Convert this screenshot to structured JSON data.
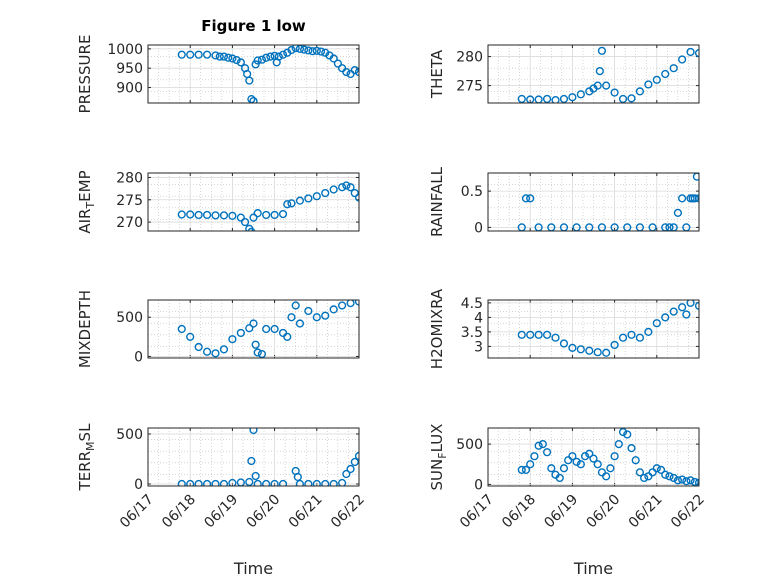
{
  "figure": {
    "colors": {
      "marker": "#0072BD",
      "axis": "#262626",
      "grid": "#bdbdbd"
    },
    "x_tick_labels": [
      "06/17",
      "06/18",
      "06/19",
      "06/20",
      "06/21",
      "06/22"
    ],
    "xlabel": "Time"
  },
  "chart_data": [
    {
      "type": "scatter",
      "title": "Figure 1 low",
      "ylabel": "PRESSURE",
      "ylabel_sub": "",
      "ylim": [
        860,
        1010
      ],
      "yticks": [
        900,
        950,
        1000
      ],
      "ytick_labels": [
        "900",
        "950",
        "1000"
      ],
      "xlim": [
        0,
        5
      ],
      "grid": true,
      "series": [
        {
          "x": [
            0.8,
            1.0,
            1.2,
            1.4,
            1.6,
            1.7,
            1.8,
            1.9,
            2.0,
            2.1,
            2.2,
            2.3,
            2.35,
            2.4,
            2.45,
            2.5,
            2.55,
            2.6,
            2.7,
            2.8,
            2.9,
            3.0,
            3.05,
            3.1,
            3.2,
            3.3,
            3.4,
            3.5,
            3.6,
            3.7,
            3.8,
            3.9,
            4.0,
            4.1,
            4.2,
            4.3,
            4.4,
            4.5,
            4.6,
            4.7,
            4.8,
            4.9,
            5.0
          ],
          "y": [
            985,
            985,
            985,
            985,
            983,
            980,
            980,
            977,
            975,
            971,
            965,
            950,
            935,
            918,
            870,
            865,
            960,
            970,
            972,
            977,
            980,
            982,
            965,
            980,
            985,
            990,
            997,
            1002,
            1000,
            998,
            996,
            994,
            995,
            993,
            990,
            983,
            975,
            962,
            950,
            940,
            935,
            945,
            940
          ]
        }
      ]
    },
    {
      "type": "scatter",
      "title": "",
      "ylabel": "THETA",
      "ylabel_sub": "",
      "ylim": [
        272,
        282
      ],
      "yticks": [
        275,
        280
      ],
      "ytick_labels": [
        "275",
        "280"
      ],
      "xlim": [
        0,
        5
      ],
      "grid": true,
      "series": [
        {
          "x": [
            0.8,
            1.0,
            1.2,
            1.4,
            1.6,
            1.8,
            2.0,
            2.2,
            2.4,
            2.5,
            2.6,
            2.65,
            2.7,
            2.8,
            3.0,
            3.2,
            3.4,
            3.6,
            3.8,
            4.0,
            4.2,
            4.4,
            4.6,
            4.8,
            5.0
          ],
          "y": [
            272.7,
            272.6,
            272.6,
            272.7,
            272.5,
            272.7,
            273.0,
            273.5,
            274.0,
            274.5,
            275.0,
            277.5,
            281.0,
            275.0,
            273.8,
            272.7,
            272.8,
            274.0,
            275.2,
            276.0,
            277.0,
            278.0,
            279.5,
            280.8,
            280.6
          ]
        }
      ]
    },
    {
      "type": "scatter",
      "title": "",
      "ylabel": "AIR",
      "ylabel_sub": "T",
      "ylabel_rest": "EMP",
      "ylim": [
        268,
        281
      ],
      "yticks": [
        270,
        275,
        280
      ],
      "ytick_labels": [
        "270",
        "275",
        "280"
      ],
      "xlim": [
        0,
        5
      ],
      "grid": true,
      "series": [
        {
          "x": [
            0.8,
            1.0,
            1.2,
            1.4,
            1.6,
            1.8,
            2.0,
            2.2,
            2.3,
            2.4,
            2.45,
            2.5,
            2.6,
            2.8,
            3.0,
            3.2,
            3.3,
            3.4,
            3.6,
            3.8,
            4.0,
            4.2,
            4.4,
            4.6,
            4.7,
            4.8,
            4.9,
            5.0
          ],
          "y": [
            271.7,
            271.7,
            271.6,
            271.6,
            271.5,
            271.5,
            271.4,
            271.0,
            270.0,
            268.5,
            267.8,
            271.0,
            272.0,
            271.6,
            271.6,
            271.8,
            274.0,
            274.2,
            274.8,
            275.3,
            275.8,
            276.5,
            277.3,
            277.8,
            278.2,
            277.8,
            276.5,
            275.5
          ]
        }
      ]
    },
    {
      "type": "scatter",
      "title": "",
      "ylabel": "RAINFALL",
      "ylabel_sub": "",
      "ylim": [
        -0.05,
        0.75
      ],
      "yticks": [
        0,
        0.5
      ],
      "ytick_labels": [
        "0",
        "0.5"
      ],
      "xlim": [
        0,
        5
      ],
      "grid": true,
      "series": [
        {
          "x": [
            0.8,
            0.9,
            1.0,
            1.2,
            1.5,
            1.8,
            2.1,
            2.4,
            2.7,
            3.0,
            3.3,
            3.6,
            3.9,
            4.2,
            4.3,
            4.4,
            4.5,
            4.6,
            4.7,
            4.8,
            4.85,
            4.9,
            4.95,
            5.0
          ],
          "y": [
            0,
            0.4,
            0.4,
            0,
            0,
            0,
            0,
            0,
            0,
            0,
            0,
            0,
            0,
            0,
            0,
            0,
            0.2,
            0.4,
            0,
            0.4,
            0.4,
            0.4,
            0.7,
            0.4
          ]
        }
      ]
    },
    {
      "type": "scatter",
      "title": "",
      "ylabel": "MIXDEPTH",
      "ylabel_sub": "",
      "ylim": [
        -20,
        720
      ],
      "yticks": [
        0,
        500
      ],
      "ytick_labels": [
        "0",
        "500"
      ],
      "xlim": [
        0,
        5
      ],
      "grid": true,
      "series": [
        {
          "x": [
            0.8,
            1.0,
            1.2,
            1.4,
            1.6,
            1.8,
            2.0,
            2.2,
            2.4,
            2.5,
            2.55,
            2.6,
            2.7,
            2.8,
            3.0,
            3.2,
            3.3,
            3.4,
            3.5,
            3.6,
            3.8,
            4.0,
            4.2,
            4.4,
            4.6,
            4.8,
            5.0
          ],
          "y": [
            350,
            250,
            120,
            60,
            40,
            90,
            220,
            300,
            360,
            420,
            150,
            50,
            30,
            350,
            350,
            300,
            250,
            500,
            650,
            420,
            580,
            500,
            520,
            600,
            650,
            680,
            700
          ]
        }
      ]
    },
    {
      "type": "scatter",
      "title": "",
      "ylabel": "H2OMIXRA",
      "ylabel_sub": "",
      "ylim": [
        2.6,
        4.6
      ],
      "yticks": [
        3,
        3.5,
        4,
        4.5
      ],
      "ytick_labels": [
        "3",
        "3.5",
        "4",
        "4.5"
      ],
      "xlim": [
        0,
        5
      ],
      "grid": true,
      "series": [
        {
          "x": [
            0.8,
            1.0,
            1.2,
            1.4,
            1.6,
            1.8,
            2.0,
            2.2,
            2.4,
            2.6,
            2.8,
            3.0,
            3.2,
            3.4,
            3.6,
            3.8,
            4.0,
            4.2,
            4.4,
            4.6,
            4.7,
            4.8,
            5.0
          ],
          "y": [
            3.4,
            3.4,
            3.4,
            3.4,
            3.3,
            3.1,
            2.95,
            2.9,
            2.85,
            2.8,
            2.78,
            3.05,
            3.3,
            3.4,
            3.3,
            3.5,
            3.8,
            4.0,
            4.2,
            4.35,
            4.1,
            4.5,
            4.4
          ]
        }
      ]
    },
    {
      "type": "scatter",
      "title": "",
      "ylabel": "TERR",
      "ylabel_sub": "M",
      "ylabel_rest": "SL",
      "ylim": [
        -20,
        560
      ],
      "yticks": [
        0,
        500
      ],
      "ytick_labels": [
        "0",
        "500"
      ],
      "xlim": [
        0,
        5
      ],
      "grid": true,
      "series": [
        {
          "x": [
            0.8,
            1.0,
            1.2,
            1.4,
            1.6,
            1.8,
            2.0,
            2.2,
            2.4,
            2.45,
            2.5,
            2.55,
            2.6,
            2.8,
            3.0,
            3.2,
            3.5,
            3.55,
            3.6,
            3.8,
            4.0,
            4.2,
            4.4,
            4.6,
            4.7,
            4.8,
            4.9,
            5.0
          ],
          "y": [
            0,
            0,
            0,
            0,
            0,
            0,
            10,
            15,
            20,
            230,
            540,
            80,
            0,
            0,
            0,
            0,
            130,
            70,
            0,
            0,
            0,
            0,
            0,
            10,
            100,
            150,
            220,
            280
          ]
        }
      ]
    },
    {
      "type": "scatter",
      "title": "",
      "ylabel": "SUN",
      "ylabel_sub": "F",
      "ylabel_rest": "LUX",
      "ylim": [
        -20,
        700
      ],
      "yticks": [
        0,
        500
      ],
      "ytick_labels": [
        "0",
        "500"
      ],
      "xlim": [
        0,
        5
      ],
      "grid": true,
      "series": [
        {
          "x": [
            0.8,
            0.9,
            1.0,
            1.1,
            1.2,
            1.3,
            1.4,
            1.5,
            1.6,
            1.7,
            1.8,
            1.9,
            2.0,
            2.1,
            2.2,
            2.3,
            2.4,
            2.5,
            2.6,
            2.7,
            2.8,
            2.9,
            3.0,
            3.1,
            3.2,
            3.3,
            3.4,
            3.5,
            3.6,
            3.7,
            3.8,
            3.9,
            4.0,
            4.1,
            4.2,
            4.3,
            4.4,
            4.5,
            4.6,
            4.7,
            4.8,
            4.9,
            5.0
          ],
          "y": [
            180,
            180,
            250,
            350,
            480,
            500,
            400,
            200,
            120,
            80,
            200,
            300,
            350,
            280,
            250,
            350,
            380,
            320,
            250,
            150,
            100,
            200,
            350,
            500,
            650,
            620,
            450,
            300,
            150,
            80,
            100,
            150,
            200,
            180,
            120,
            100,
            80,
            50,
            60,
            40,
            50,
            30,
            20
          ]
        }
      ]
    }
  ]
}
